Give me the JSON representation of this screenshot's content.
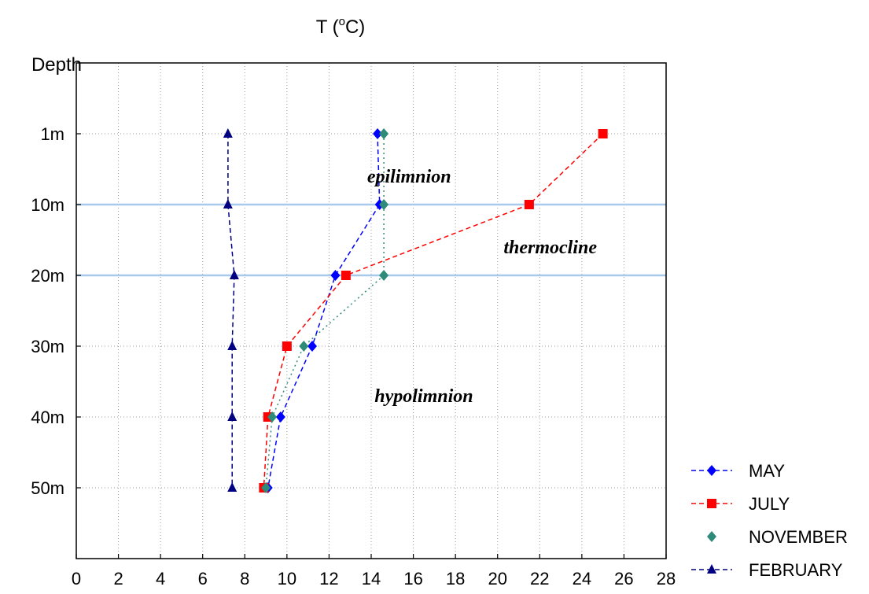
{
  "chart_data": {
    "type": "line",
    "title": "T (ºC)",
    "title_base": "T (",
    "title_sup": "o",
    "title_end": "C)",
    "ylabel": "Depth",
    "xlim": [
      0,
      28
    ],
    "x_ticks": [
      "0",
      "2",
      "4",
      "6",
      "8",
      "10",
      "12",
      "14",
      "16",
      "18",
      "20",
      "22",
      "24",
      "26",
      "28"
    ],
    "y_categories": [
      "1m",
      "10m",
      "20m",
      "30m",
      "40m",
      "50m"
    ],
    "y_inverted": true,
    "grid": true,
    "legend_placement": "bottom-right",
    "reference_lines_at_depth": [
      "10m",
      "20m"
    ],
    "annotations": [
      {
        "text": "epilimnion",
        "x": 15.8,
        "depth_index": 0.6
      },
      {
        "text": "thermocline",
        "x": 22.5,
        "depth_index": 1.6
      },
      {
        "text": "hypolimnion",
        "x": 16.5,
        "depth_index": 3.7
      }
    ],
    "series": [
      {
        "name": "MAY",
        "color": "#0000ff",
        "marker": "diamond",
        "dash": "6,4",
        "values": [
          14.3,
          14.4,
          12.3,
          11.2,
          9.7,
          9.1
        ]
      },
      {
        "name": "JULY",
        "color": "#ff0000",
        "marker": "square",
        "dash": "6,4",
        "values": [
          25.0,
          21.5,
          12.8,
          10.0,
          9.1,
          8.9
        ]
      },
      {
        "name": "NOVEMBER",
        "color": "#2e8b7a",
        "marker": "diamond",
        "dash": "2,4",
        "values": [
          14.6,
          14.6,
          14.6,
          10.8,
          9.3,
          9.0
        ]
      },
      {
        "name": "FEBRUARY",
        "color": "#000080",
        "marker": "triangle",
        "dash": "6,4",
        "values": [
          7.2,
          7.2,
          7.5,
          7.4,
          7.4,
          7.4
        ]
      }
    ]
  }
}
